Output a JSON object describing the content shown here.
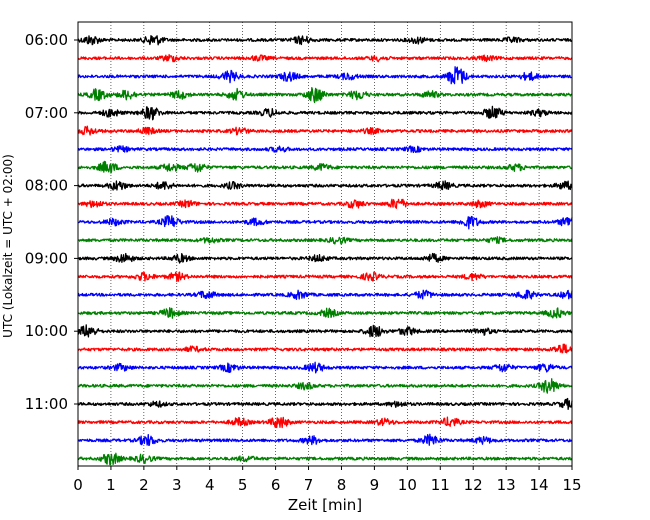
{
  "chart_data": {
    "type": "line",
    "description_free": true,
    "xlabel": "Zeit  [min]",
    "ylabel": "UTC (Lokalzeit = UTC + 02:00)",
    "xlim": [
      0,
      15
    ],
    "x_ticks": [
      "0",
      "1",
      "2",
      "3",
      "4",
      "5",
      "6",
      "7",
      "8",
      "9",
      "10",
      "11",
      "12",
      "13",
      "14",
      "15"
    ],
    "y_tick_labels": [
      "06:00",
      "07:00",
      "08:00",
      "09:00",
      "10:00",
      "11:00"
    ],
    "grid_x": true,
    "grid_style": "dotted",
    "row_interval_min": 15,
    "row_start": "06:00",
    "color_cycle": [
      "#000000",
      "#ff0000",
      "#0000ff",
      "#008000"
    ],
    "rows": [
      {
        "start": "06:00",
        "color": "#000000",
        "bursts": [
          [
            0.4,
            0.6
          ],
          [
            2.3,
            0.7
          ],
          [
            6.8,
            0.5
          ],
          [
            10.3,
            0.4
          ],
          [
            13.2,
            0.3
          ]
        ]
      },
      {
        "start": "06:15",
        "color": "#ff0000",
        "bursts": [
          [
            2.8,
            0.4
          ],
          [
            5.5,
            0.3
          ],
          [
            9.1,
            0.3
          ],
          [
            12.4,
            0.3
          ]
        ]
      },
      {
        "start": "06:30",
        "color": "#0000ff",
        "bursts": [
          [
            4.6,
            0.7
          ],
          [
            6.4,
            0.6
          ],
          [
            8.2,
            0.4
          ],
          [
            11.5,
            1.4
          ],
          [
            13.7,
            0.5
          ]
        ]
      },
      {
        "start": "06:45",
        "color": "#008000",
        "bursts": [
          [
            0.6,
            0.7
          ],
          [
            1.5,
            0.6
          ],
          [
            3.1,
            0.5
          ],
          [
            4.8,
            0.7
          ],
          [
            7.2,
            1.0
          ],
          [
            8.5,
            0.6
          ],
          [
            10.7,
            0.4
          ]
        ]
      },
      {
        "start": "07:00",
        "color": "#000000",
        "bursts": [
          [
            1.0,
            0.5
          ],
          [
            2.2,
            0.9
          ],
          [
            5.8,
            0.5
          ],
          [
            12.6,
            0.8
          ],
          [
            14.0,
            0.4
          ]
        ]
      },
      {
        "start": "07:15",
        "color": "#ff0000",
        "bursts": [
          [
            0.3,
            0.5
          ],
          [
            2.1,
            0.4
          ],
          [
            4.9,
            0.4
          ],
          [
            8.9,
            0.3
          ]
        ]
      },
      {
        "start": "07:30",
        "color": "#0000ff",
        "bursts": [
          [
            1.3,
            0.3
          ],
          [
            6.1,
            0.3
          ],
          [
            10.2,
            0.3
          ]
        ]
      },
      {
        "start": "07:45",
        "color": "#008000",
        "bursts": [
          [
            0.9,
            0.8
          ],
          [
            2.8,
            0.5
          ],
          [
            3.6,
            0.6
          ],
          [
            7.4,
            0.4
          ],
          [
            13.3,
            0.4
          ]
        ]
      },
      {
        "start": "08:00",
        "color": "#000000",
        "bursts": [
          [
            1.2,
            0.6
          ],
          [
            2.6,
            0.5
          ],
          [
            4.7,
            0.4
          ],
          [
            11.1,
            0.5
          ],
          [
            14.8,
            0.5
          ]
        ]
      },
      {
        "start": "08:15",
        "color": "#ff0000",
        "bursts": [
          [
            0.5,
            0.4
          ],
          [
            3.3,
            0.4
          ],
          [
            8.4,
            0.5
          ],
          [
            9.7,
            0.7
          ],
          [
            12.2,
            0.4
          ]
        ]
      },
      {
        "start": "08:30",
        "color": "#0000ff",
        "bursts": [
          [
            1.1,
            0.4
          ],
          [
            2.8,
            0.8
          ],
          [
            5.4,
            0.4
          ],
          [
            11.9,
            0.8
          ],
          [
            14.9,
            0.7
          ]
        ]
      },
      {
        "start": "08:45",
        "color": "#008000",
        "bursts": [
          [
            4.0,
            0.3
          ],
          [
            7.9,
            0.4
          ],
          [
            12.7,
            0.3
          ]
        ]
      },
      {
        "start": "09:00",
        "color": "#000000",
        "bursts": [
          [
            1.4,
            0.6
          ],
          [
            3.1,
            0.5
          ],
          [
            7.3,
            0.4
          ],
          [
            10.8,
            0.5
          ]
        ]
      },
      {
        "start": "09:15",
        "color": "#ff0000",
        "bursts": [
          [
            2.0,
            0.5
          ],
          [
            3.0,
            0.5
          ],
          [
            8.9,
            0.5
          ],
          [
            12.0,
            0.4
          ]
        ]
      },
      {
        "start": "09:30",
        "color": "#0000ff",
        "bursts": [
          [
            3.9,
            0.5
          ],
          [
            6.7,
            0.5
          ],
          [
            10.5,
            0.5
          ],
          [
            13.6,
            0.6
          ],
          [
            14.9,
            0.5
          ]
        ]
      },
      {
        "start": "09:45",
        "color": "#008000",
        "bursts": [
          [
            2.8,
            0.6
          ],
          [
            7.6,
            0.5
          ],
          [
            14.5,
            0.6
          ]
        ]
      },
      {
        "start": "10:00",
        "color": "#000000",
        "bursts": [
          [
            0.3,
            0.8
          ],
          [
            9.0,
            0.8
          ],
          [
            10.0,
            0.5
          ],
          [
            12.3,
            0.4
          ]
        ]
      },
      {
        "start": "10:15",
        "color": "#ff0000",
        "bursts": [
          [
            3.5,
            0.3
          ],
          [
            14.7,
            0.6
          ]
        ]
      },
      {
        "start": "10:30",
        "color": "#0000ff",
        "bursts": [
          [
            1.3,
            0.4
          ],
          [
            4.6,
            0.5
          ],
          [
            7.2,
            0.6
          ],
          [
            12.9,
            0.5
          ],
          [
            14.2,
            0.5
          ]
        ]
      },
      {
        "start": "10:45",
        "color": "#008000",
        "bursts": [
          [
            6.9,
            0.4
          ],
          [
            14.3,
            1.0
          ]
        ]
      },
      {
        "start": "11:00",
        "color": "#000000",
        "bursts": [
          [
            2.4,
            0.3
          ],
          [
            9.7,
            0.3
          ],
          [
            14.9,
            0.6
          ]
        ]
      },
      {
        "start": "11:15",
        "color": "#ff0000",
        "bursts": [
          [
            4.9,
            0.5
          ],
          [
            6.1,
            0.8
          ],
          [
            9.3,
            0.4
          ],
          [
            11.3,
            0.6
          ]
        ]
      },
      {
        "start": "11:30",
        "color": "#0000ff",
        "bursts": [
          [
            2.1,
            0.7
          ],
          [
            7.1,
            0.5
          ],
          [
            10.7,
            0.7
          ],
          [
            12.3,
            0.4
          ]
        ]
      },
      {
        "start": "11:45",
        "color": "#008000",
        "bursts": [
          [
            1.0,
            0.8
          ],
          [
            2.0,
            0.5
          ],
          [
            5.1,
            0.3
          ]
        ]
      }
    ]
  }
}
